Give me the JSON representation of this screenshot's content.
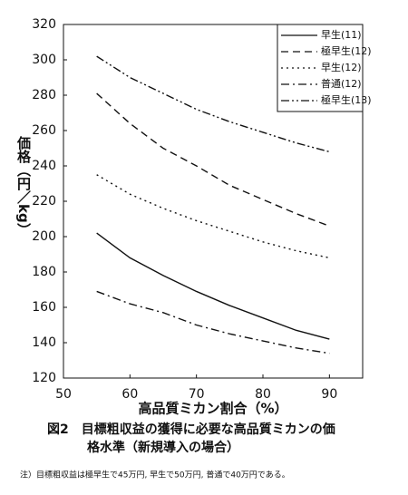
{
  "chart_data": {
    "type": "line",
    "y_label": "価格（円／kg）",
    "x_label": "高品質ミカン割合（%）",
    "caption": [
      "図2　目標粗収益の獲得に必要な高品質ミカンの価",
      "格水準（新規導入の場合）"
    ],
    "note": "注）目標粗収益は極早生で45万円, 早生で50万円, 普通で40万円である。",
    "x": [
      55,
      60,
      65,
      70,
      75,
      80,
      85,
      90
    ],
    "series": [
      {
        "name": "早生(11)",
        "color": "#111111",
        "dash": "solid",
        "values": [
          202,
          188,
          178,
          169,
          161,
          154,
          147,
          142
        ]
      },
      {
        "name": "極早生(12)",
        "color": "#111111",
        "dash": "dashed",
        "values": [
          281,
          264,
          250,
          240,
          229,
          221,
          213,
          206
        ]
      },
      {
        "name": "早生(12)",
        "color": "#111111",
        "dash": "dotted",
        "values": [
          235,
          224,
          216,
          209,
          203,
          197,
          192,
          188
        ]
      },
      {
        "name": "普通(12)",
        "color": "#111111",
        "dash": "dashdot",
        "values": [
          169,
          162,
          157,
          150,
          145,
          141,
          137,
          134
        ]
      },
      {
        "name": "極早生(13)",
        "color": "#111111",
        "dash": "dashdotdot",
        "values": [
          302,
          290,
          281,
          272,
          265,
          259,
          253,
          248
        ]
      }
    ],
    "xlim": [
      50,
      95
    ],
    "ylim": [
      120,
      320
    ],
    "xticks": [
      50,
      60,
      70,
      80,
      90
    ],
    "yticks": [
      120,
      140,
      160,
      180,
      200,
      220,
      240,
      260,
      280,
      300,
      320
    ],
    "grid": false,
    "legend": "top-right"
  }
}
